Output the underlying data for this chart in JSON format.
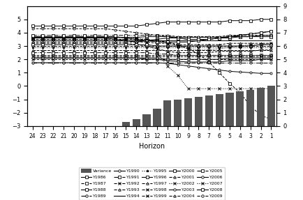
{
  "horizons": [
    24,
    23,
    22,
    21,
    20,
    19,
    18,
    17,
    16,
    15,
    14,
    13,
    12,
    11,
    10,
    9,
    8,
    7,
    6,
    5,
    4,
    3,
    2,
    1
  ],
  "variance": [
    0,
    0,
    0,
    0,
    0,
    0,
    0,
    0,
    0,
    0.3,
    0.5,
    0.9,
    1.3,
    1.9,
    2.0,
    2.1,
    2.2,
    2.3,
    2.4,
    2.5,
    2.6,
    2.7,
    2.85,
    3.0
  ],
  "series": {
    "Y1986": [
      3.6,
      3.6,
      3.6,
      3.6,
      3.6,
      3.6,
      3.6,
      3.6,
      3.5,
      3.4,
      3.3,
      3.4,
      3.5,
      3.6,
      3.6,
      3.5,
      3.5,
      3.5,
      3.6,
      3.6,
      3.7,
      3.7,
      3.8,
      3.8
    ],
    "Y1987": [
      3.5,
      3.5,
      3.5,
      3.5,
      3.5,
      3.5,
      3.5,
      3.5,
      3.5,
      3.5,
      3.5,
      3.5,
      3.4,
      3.3,
      3.1,
      2.8,
      2.4,
      1.8,
      1.0,
      0.2,
      -0.5,
      -1.5,
      -2.2,
      -2.5
    ],
    "Y1988": [
      3.65,
      3.65,
      3.65,
      3.65,
      3.65,
      3.65,
      3.65,
      3.65,
      3.65,
      3.65,
      3.65,
      3.7,
      3.7,
      3.7,
      3.65,
      3.65,
      3.65,
      3.65,
      3.65,
      3.7,
      3.7,
      3.7,
      3.7,
      3.7
    ],
    "Y1989": [
      1.75,
      1.75,
      1.75,
      1.75,
      1.75,
      1.75,
      1.75,
      1.75,
      1.75,
      1.75,
      1.75,
      1.75,
      1.75,
      1.75,
      1.75,
      1.75,
      1.75,
      1.75,
      1.75,
      1.75,
      1.75,
      1.75,
      1.75,
      1.75
    ],
    "Y1990": [
      2.1,
      2.1,
      2.1,
      2.1,
      2.1,
      2.1,
      2.1,
      2.1,
      2.1,
      2.1,
      2.1,
      2.0,
      2.0,
      1.9,
      1.85,
      1.8,
      1.8,
      1.8,
      1.8,
      1.9,
      1.9,
      1.9,
      2.0,
      2.0
    ],
    "Y1991": [
      2.5,
      2.5,
      2.5,
      2.5,
      2.5,
      2.5,
      2.5,
      2.5,
      2.5,
      2.5,
      2.5,
      2.5,
      2.4,
      2.4,
      2.3,
      2.3,
      2.3,
      2.3,
      2.3,
      2.3,
      2.3,
      2.3,
      2.3,
      2.3
    ],
    "Y1992": [
      3.2,
      3.2,
      3.2,
      3.2,
      3.2,
      3.2,
      3.2,
      3.2,
      3.2,
      3.2,
      3.1,
      3.0,
      2.8,
      2.6,
      2.5,
      2.5,
      2.5,
      2.5,
      2.6,
      2.6,
      2.6,
      2.6,
      2.7,
      2.7
    ],
    "Y1993": [
      3.3,
      3.3,
      3.3,
      3.3,
      3.3,
      3.3,
      3.3,
      3.3,
      3.3,
      3.3,
      3.3,
      3.3,
      3.2,
      3.2,
      3.1,
      3.1,
      3.1,
      3.1,
      3.1,
      3.2,
      3.2,
      3.2,
      3.2,
      3.2
    ],
    "Y1994": [
      3.4,
      3.4,
      3.4,
      3.4,
      3.4,
      3.4,
      3.4,
      3.4,
      3.4,
      3.4,
      3.4,
      3.4,
      3.4,
      3.4,
      3.4,
      3.4,
      3.4,
      3.4,
      3.4,
      3.4,
      3.4,
      3.4,
      3.4,
      3.4
    ],
    "Y1995": [
      2.9,
      2.9,
      2.9,
      2.9,
      2.9,
      2.9,
      2.9,
      2.9,
      2.9,
      2.9,
      2.9,
      2.9,
      2.9,
      2.9,
      2.9,
      2.9,
      2.9,
      2.9,
      2.9,
      2.9,
      2.9,
      2.9,
      2.9,
      2.9
    ],
    "Y1996": [
      3.1,
      3.1,
      3.1,
      3.1,
      3.1,
      3.1,
      3.1,
      3.1,
      3.1,
      3.1,
      3.1,
      3.1,
      3.0,
      3.0,
      3.0,
      3.0,
      3.0,
      3.0,
      3.0,
      3.0,
      3.0,
      3.0,
      3.1,
      3.1
    ],
    "Y1997": [
      2.7,
      2.7,
      2.7,
      2.7,
      2.7,
      2.7,
      2.7,
      2.7,
      2.7,
      2.7,
      2.7,
      2.7,
      2.7,
      2.7,
      2.7,
      2.7,
      2.7,
      2.7,
      2.7,
      2.7,
      2.7,
      2.7,
      2.7,
      2.7
    ],
    "Y1998": [
      2.2,
      2.2,
      2.2,
      2.2,
      2.2,
      2.2,
      2.2,
      2.2,
      2.2,
      2.2,
      2.2,
      2.2,
      2.2,
      2.2,
      2.2,
      2.2,
      2.2,
      2.2,
      2.2,
      2.2,
      2.2,
      2.2,
      2.2,
      2.2
    ],
    "Y1999": [
      2.0,
      2.0,
      2.0,
      2.0,
      2.0,
      2.0,
      2.0,
      2.0,
      2.0,
      2.0,
      2.0,
      2.0,
      2.0,
      2.0,
      2.0,
      2.0,
      2.0,
      2.0,
      2.0,
      2.0,
      2.0,
      2.0,
      2.0,
      2.0
    ],
    "Y2000": [
      3.7,
      3.7,
      3.7,
      3.7,
      3.7,
      3.7,
      3.7,
      3.7,
      3.7,
      3.6,
      3.5,
      3.4,
      3.3,
      3.3,
      3.3,
      3.3,
      3.4,
      3.5,
      3.6,
      3.7,
      3.8,
      3.9,
      4.0,
      4.1
    ],
    "Y2001": [
      3.0,
      3.0,
      3.0,
      3.0,
      3.0,
      3.0,
      3.0,
      3.0,
      3.0,
      3.0,
      3.0,
      3.0,
      3.0,
      3.0,
      3.0,
      3.0,
      3.0,
      3.0,
      3.0,
      3.0,
      3.0,
      3.0,
      3.0,
      3.0
    ],
    "Y2002": [
      3.5,
      3.5,
      3.5,
      3.5,
      3.5,
      3.5,
      3.5,
      3.5,
      3.5,
      3.5,
      3.5,
      3.3,
      2.5,
      1.5,
      0.8,
      -0.2,
      -0.2,
      -0.2,
      -0.2,
      -0.2,
      -0.2,
      -0.2,
      -0.2,
      -0.2
    ],
    "Y2003": [
      2.1,
      2.1,
      2.1,
      2.1,
      2.1,
      2.1,
      2.1,
      2.1,
      2.1,
      2.1,
      2.1,
      2.1,
      2.1,
      2.0,
      2.0,
      2.0,
      2.0,
      2.0,
      2.0,
      2.1,
      2.1,
      2.1,
      2.1,
      2.1
    ],
    "Y2004": [
      2.3,
      2.3,
      2.3,
      2.3,
      2.3,
      2.3,
      2.3,
      2.3,
      2.3,
      2.3,
      2.3,
      2.3,
      2.3,
      2.3,
      2.3,
      2.3,
      2.3,
      2.3,
      2.3,
      2.3,
      2.3,
      2.3,
      2.3,
      2.3
    ],
    "Y2005": [
      3.8,
      3.8,
      3.8,
      3.8,
      3.8,
      3.8,
      3.8,
      3.8,
      3.8,
      3.8,
      3.8,
      3.8,
      3.8,
      3.7,
      3.6,
      3.5,
      3.5,
      3.5,
      3.6,
      3.7,
      3.8,
      3.9,
      4.0,
      4.1
    ],
    "Y2006": [
      1.75,
      1.75,
      1.75,
      1.75,
      1.75,
      1.75,
      1.75,
      1.75,
      1.75,
      1.75,
      1.75,
      1.75,
      1.75,
      1.7,
      1.6,
      1.5,
      1.4,
      1.3,
      1.2,
      1.1,
      1.05,
      1.0,
      0.95,
      0.95
    ],
    "Y2007": [
      3.6,
      3.6,
      3.6,
      3.6,
      3.6,
      3.6,
      3.6,
      3.6,
      3.6,
      3.6,
      3.6,
      3.5,
      3.4,
      3.2,
      3.0,
      2.8,
      2.7,
      2.7,
      2.8,
      2.9,
      3.0,
      3.1,
      3.1,
      3.2
    ],
    "Y2008": [
      4.5,
      4.5,
      4.5,
      4.5,
      4.5,
      4.5,
      4.5,
      4.5,
      4.5,
      4.5,
      4.5,
      4.6,
      4.7,
      4.8,
      4.8,
      4.8,
      4.8,
      4.8,
      4.8,
      4.9,
      4.9,
      4.9,
      5.0,
      5.0
    ],
    "Y2009": [
      4.3,
      4.3,
      4.3,
      4.3,
      4.3,
      4.3,
      4.3,
      4.3,
      4.2,
      4.1,
      4.0,
      3.9,
      3.8,
      3.8,
      3.7,
      3.7,
      3.7,
      3.7,
      3.7,
      3.8,
      3.8,
      3.8,
      3.8,
      3.8
    ]
  },
  "series_styles": {
    "Y1986": {
      "ls": "-",
      "marker": "s"
    },
    "Y1987": {
      "ls": "--",
      "marker": "s"
    },
    "Y1988": {
      "ls": "-",
      "marker": "s"
    },
    "Y1989": {
      "ls": "-.",
      "marker": "o"
    },
    "Y1990": {
      "ls": "-",
      "marker": "o"
    },
    "Y1991": {
      "ls": "-.",
      "marker": "s"
    },
    "Y1992": {
      "ls": "--",
      "marker": "x"
    },
    "Y1993": {
      "ls": "--",
      "marker": "^"
    },
    "Y1994": {
      "ls": "-",
      "marker": null
    },
    "Y1995": {
      "ls": ":",
      "marker": "*"
    },
    "Y1996": {
      "ls": "-",
      "marker": "s"
    },
    "Y1997": {
      "ls": "--",
      "marker": "^"
    },
    "Y1998": {
      "ls": "--",
      "marker": "x"
    },
    "Y1999": {
      "ls": "--",
      "marker": "x"
    },
    "Y2000": {
      "ls": "-",
      "marker": "s"
    },
    "Y2001": {
      "ls": "--",
      "marker": "^"
    },
    "Y2002": {
      "ls": ":",
      "marker": "x"
    },
    "Y2003": {
      "ls": "-",
      "marker": "o"
    },
    "Y2004": {
      "ls": "--",
      "marker": "^"
    },
    "Y2005": {
      "ls": "-.",
      "marker": "s"
    },
    "Y2006": {
      "ls": "-",
      "marker": "o"
    },
    "Y2007": {
      "ls": ":",
      "marker": "x"
    },
    "Y2008": {
      "ls": "-",
      "marker": "s"
    },
    "Y2009": {
      "ls": "--",
      "marker": "o"
    }
  },
  "xlabel": "Horizon",
  "ylim_left": [
    -3,
    6
  ],
  "ylim_right": [
    0,
    9
  ],
  "yticks_left": [
    -3,
    -2,
    -1,
    0,
    1,
    2,
    3,
    4,
    5
  ],
  "yticks_right": [
    0,
    1,
    2,
    3,
    4,
    5,
    6,
    7,
    8,
    9
  ],
  "bar_color": "#555555"
}
